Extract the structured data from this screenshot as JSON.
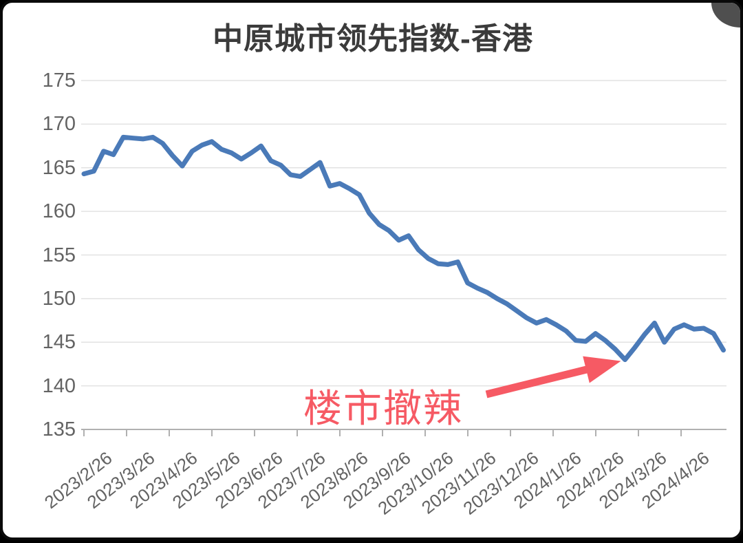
{
  "chart_data": {
    "type": "line",
    "title": "中原城市领先指数-香港",
    "grid": "horizontal",
    "legend": "none",
    "ylim": [
      135,
      175
    ],
    "y_ticks": [
      135,
      140,
      145,
      150,
      155,
      160,
      165,
      170,
      175
    ],
    "x_tick_labels": [
      "2023/2/26",
      "2023/3/26",
      "2023/4/26",
      "2023/5/26",
      "2023/6/26",
      "2023/7/26",
      "2023/8/26",
      "2023/9/26",
      "2023/10/26",
      "2023/11/26",
      "2023/12/26",
      "2024/1/26",
      "2024/2/26",
      "2024/3/26",
      "2024/4/26"
    ],
    "series": [
      {
        "name": "中原城市领先指数-香港",
        "color": "#4a7ab8",
        "dates": [
          "2023/2/26",
          "2023/3/5",
          "2023/3/12",
          "2023/3/19",
          "2023/3/26",
          "2023/4/2",
          "2023/4/9",
          "2023/4/16",
          "2023/4/23",
          "2023/4/30",
          "2023/5/7",
          "2023/5/14",
          "2023/5/21",
          "2023/5/28",
          "2023/6/4",
          "2023/6/11",
          "2023/6/18",
          "2023/6/25",
          "2023/7/2",
          "2023/7/9",
          "2023/7/16",
          "2023/7/23",
          "2023/7/30",
          "2023/8/6",
          "2023/8/13",
          "2023/8/20",
          "2023/8/27",
          "2023/9/3",
          "2023/9/10",
          "2023/9/17",
          "2023/9/24",
          "2023/10/1",
          "2023/10/8",
          "2023/10/15",
          "2023/10/22",
          "2023/10/29",
          "2023/11/5",
          "2023/11/12",
          "2023/11/19",
          "2023/11/26",
          "2023/12/3",
          "2023/12/10",
          "2023/12/17",
          "2023/12/24",
          "2023/12/31",
          "2024/1/7",
          "2024/1/14",
          "2024/1/21",
          "2024/1/28",
          "2024/2/4",
          "2024/2/11",
          "2024/2/18",
          "2024/2/25",
          "2024/3/3",
          "2024/3/10",
          "2024/3/17",
          "2024/3/24",
          "2024/3/31",
          "2024/4/7",
          "2024/4/14",
          "2024/4/21",
          "2024/4/28",
          "2024/5/5",
          "2024/5/12",
          "2024/5/19",
          "2024/5/26"
        ],
        "values": [
          164.3,
          164.6,
          166.9,
          166.5,
          168.5,
          168.4,
          168.3,
          168.5,
          167.8,
          166.4,
          165.2,
          166.9,
          167.6,
          168.0,
          167.1,
          166.7,
          166.0,
          166.7,
          167.5,
          165.8,
          165.3,
          164.2,
          164.0,
          164.8,
          165.6,
          162.9,
          163.2,
          162.6,
          161.9,
          159.8,
          158.5,
          157.8,
          156.7,
          157.2,
          155.6,
          154.6,
          154.0,
          153.9,
          154.2,
          151.8,
          151.2,
          150.7,
          150.0,
          149.4,
          148.6,
          147.8,
          147.2,
          147.6,
          147.0,
          146.3,
          145.2,
          145.1,
          146.0,
          145.2,
          144.2,
          143.0,
          144.4,
          145.9,
          147.2,
          145.0,
          146.5,
          147.0,
          146.5,
          146.6,
          146.0,
          144.1
        ]
      }
    ],
    "annotation": {
      "text": "楼市撤辣",
      "color": "#f65a64",
      "arrow_points_to_date": "2024/3/17",
      "arrow_points_to_value": 143.0
    }
  }
}
